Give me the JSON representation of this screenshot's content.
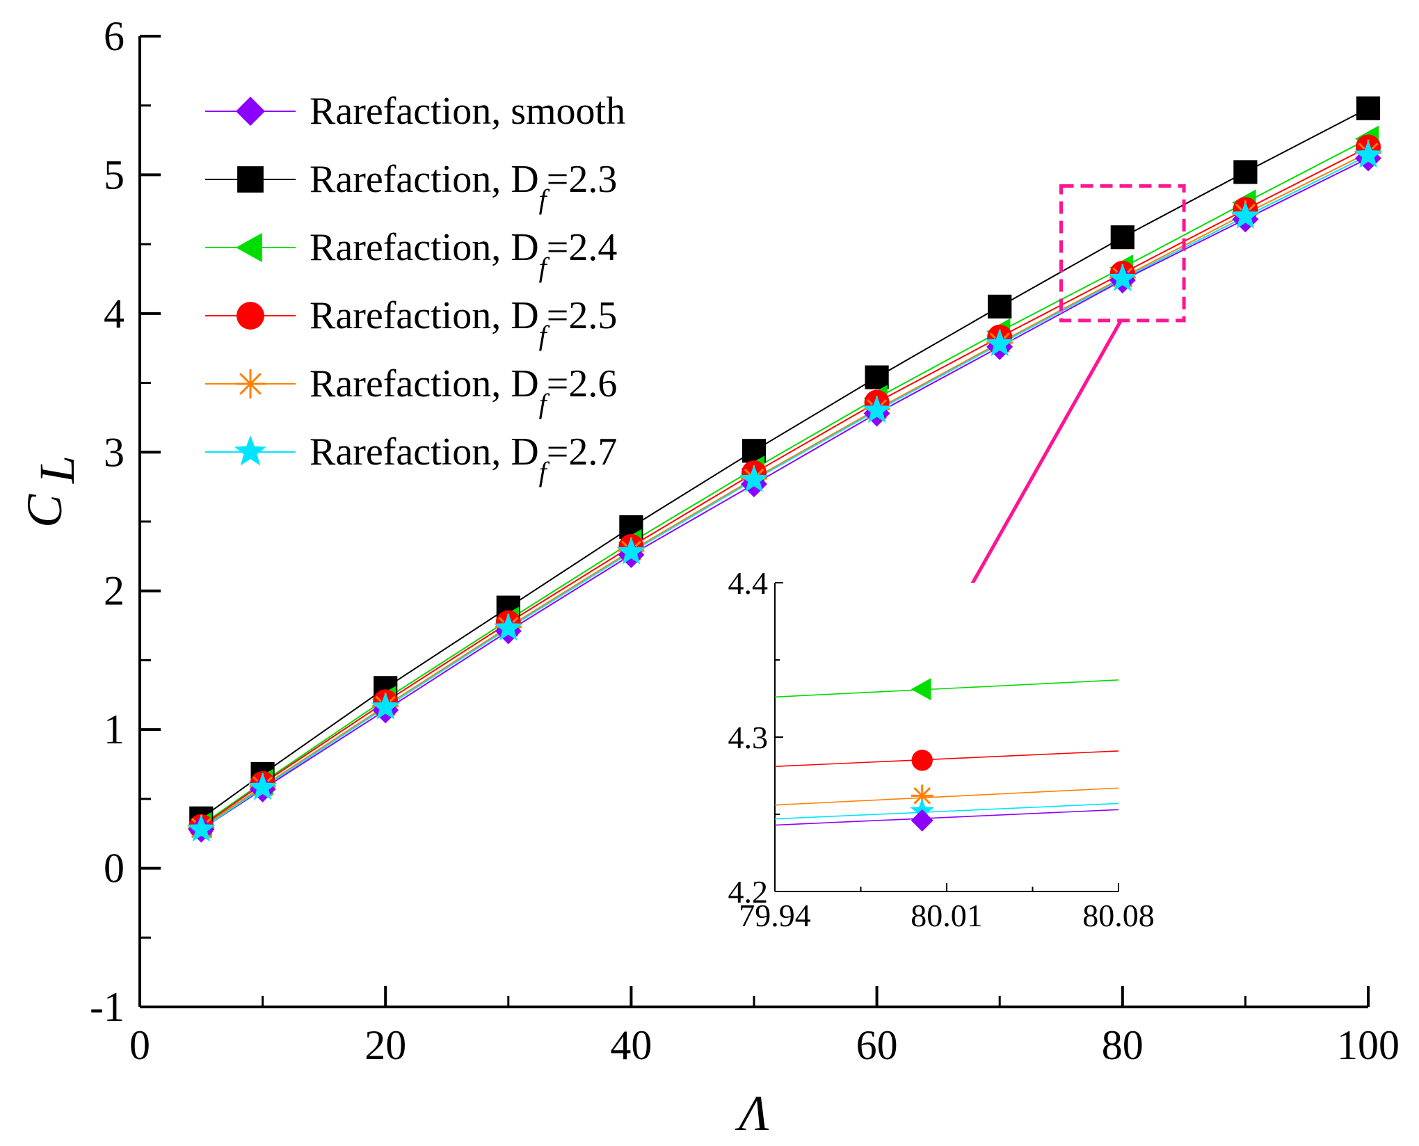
{
  "chart_data": {
    "type": "line",
    "title": "",
    "xlabel": "Λ",
    "ylabel_main": "C",
    "ylabel_sub": "L",
    "xlim": [
      0,
      100
    ],
    "ylim": [
      -1,
      6
    ],
    "x_ticks": [
      0,
      20,
      40,
      60,
      80,
      100
    ],
    "x_tick_labels": [
      "0",
      "20",
      "40",
      "60",
      "80",
      "100"
    ],
    "y_ticks": [
      -1,
      0,
      1,
      2,
      3,
      4,
      5,
      6
    ],
    "y_tick_labels": [
      "-1",
      "0",
      "1",
      "2",
      "3",
      "4",
      "5",
      "6"
    ],
    "legend_position": "top-left",
    "x": [
      5,
      10,
      20,
      30,
      40,
      50,
      60,
      70,
      80,
      90,
      100
    ],
    "series": [
      {
        "name": "Rarefaction, smooth",
        "label_prefix": "Rarefaction, smooth",
        "label_sub": "",
        "label_suffix": "",
        "color": "#8b00ff",
        "marker": "diamond",
        "values": [
          0.28,
          0.57,
          1.14,
          1.71,
          2.26,
          2.77,
          3.28,
          3.76,
          4.24,
          4.68,
          5.12
        ]
      },
      {
        "name": "Rarefaction, Df=2.3",
        "label_prefix": "Rarefaction, D",
        "label_sub": "f",
        "label_suffix": "=2.3",
        "color": "#000000",
        "marker": "square",
        "values": [
          0.36,
          0.68,
          1.3,
          1.88,
          2.46,
          3.01,
          3.54,
          4.05,
          4.55,
          5.02,
          5.48
        ]
      },
      {
        "name": "Rarefaction, Df=2.4",
        "label_prefix": "Rarefaction, D",
        "label_sub": "f",
        "label_suffix": "=2.4",
        "color": "#00dd00",
        "marker": "triangle-left",
        "values": [
          0.31,
          0.62,
          1.22,
          1.79,
          2.35,
          2.88,
          3.39,
          3.87,
          4.33,
          4.8,
          5.26
        ]
      },
      {
        "name": "Rarefaction, Df=2.5",
        "label_prefix": "Rarefaction, D",
        "label_sub": "f",
        "label_suffix": "=2.5",
        "color": "#ff0000",
        "marker": "circle",
        "values": [
          0.3,
          0.61,
          1.2,
          1.77,
          2.32,
          2.85,
          3.36,
          3.83,
          4.29,
          4.75,
          5.2
        ]
      },
      {
        "name": "Rarefaction, Df=2.6",
        "label_prefix": "Rarefaction, D",
        "label_sub": "f",
        "label_suffix": "=2.6",
        "color": "#ff8000",
        "marker": "asterisk",
        "values": [
          0.29,
          0.59,
          1.17,
          1.74,
          2.29,
          2.81,
          3.31,
          3.79,
          4.26,
          4.72,
          5.16
        ]
      },
      {
        "name": "Rarefaction, Df=2.7",
        "label_prefix": "Rarefaction, D",
        "label_sub": "f",
        "label_suffix": "=2.7",
        "color": "#00e5ff",
        "marker": "star",
        "values": [
          0.28,
          0.58,
          1.16,
          1.73,
          2.28,
          2.8,
          3.3,
          3.78,
          4.25,
          4.7,
          5.14
        ]
      }
    ],
    "zoom_box": {
      "xlim": [
        75,
        85
      ],
      "ylim": [
        3.95,
        4.92
      ],
      "color": "#ff1493"
    },
    "inset": {
      "xlim": [
        79.94,
        80.08
      ],
      "ylim": [
        4.2,
        4.4
      ],
      "x_ticks": [
        79.94,
        80.01,
        80.08
      ],
      "x_tick_labels": [
        "79.94",
        "80.01",
        "80.08"
      ],
      "x_minor_ticks": [
        79.975,
        80.045
      ],
      "y_ticks": [
        4.2,
        4.3,
        4.4
      ],
      "y_tick_labels": [
        "4.2",
        "4.3",
        "4.4"
      ],
      "y_minor_ticks": [
        4.25,
        4.35
      ],
      "marker_x": 80.0,
      "lines": [
        {
          "series": "Rarefaction, Df=2.4",
          "y_start": 4.326,
          "y_end": 4.337,
          "y_marker": 4.331
        },
        {
          "series": "Rarefaction, Df=2.5",
          "y_start": 4.281,
          "y_end": 4.291,
          "y_marker": 4.285
        },
        {
          "series": "Rarefaction, Df=2.6",
          "y_start": 4.256,
          "y_end": 4.267,
          "y_marker": 4.262
        },
        {
          "series": "Rarefaction, Df=2.7",
          "y_start": 4.247,
          "y_end": 4.257,
          "y_marker": 4.252
        },
        {
          "series": "Rarefaction, smooth",
          "y_start": 4.243,
          "y_end": 4.253,
          "y_marker": 4.246
        }
      ]
    }
  }
}
